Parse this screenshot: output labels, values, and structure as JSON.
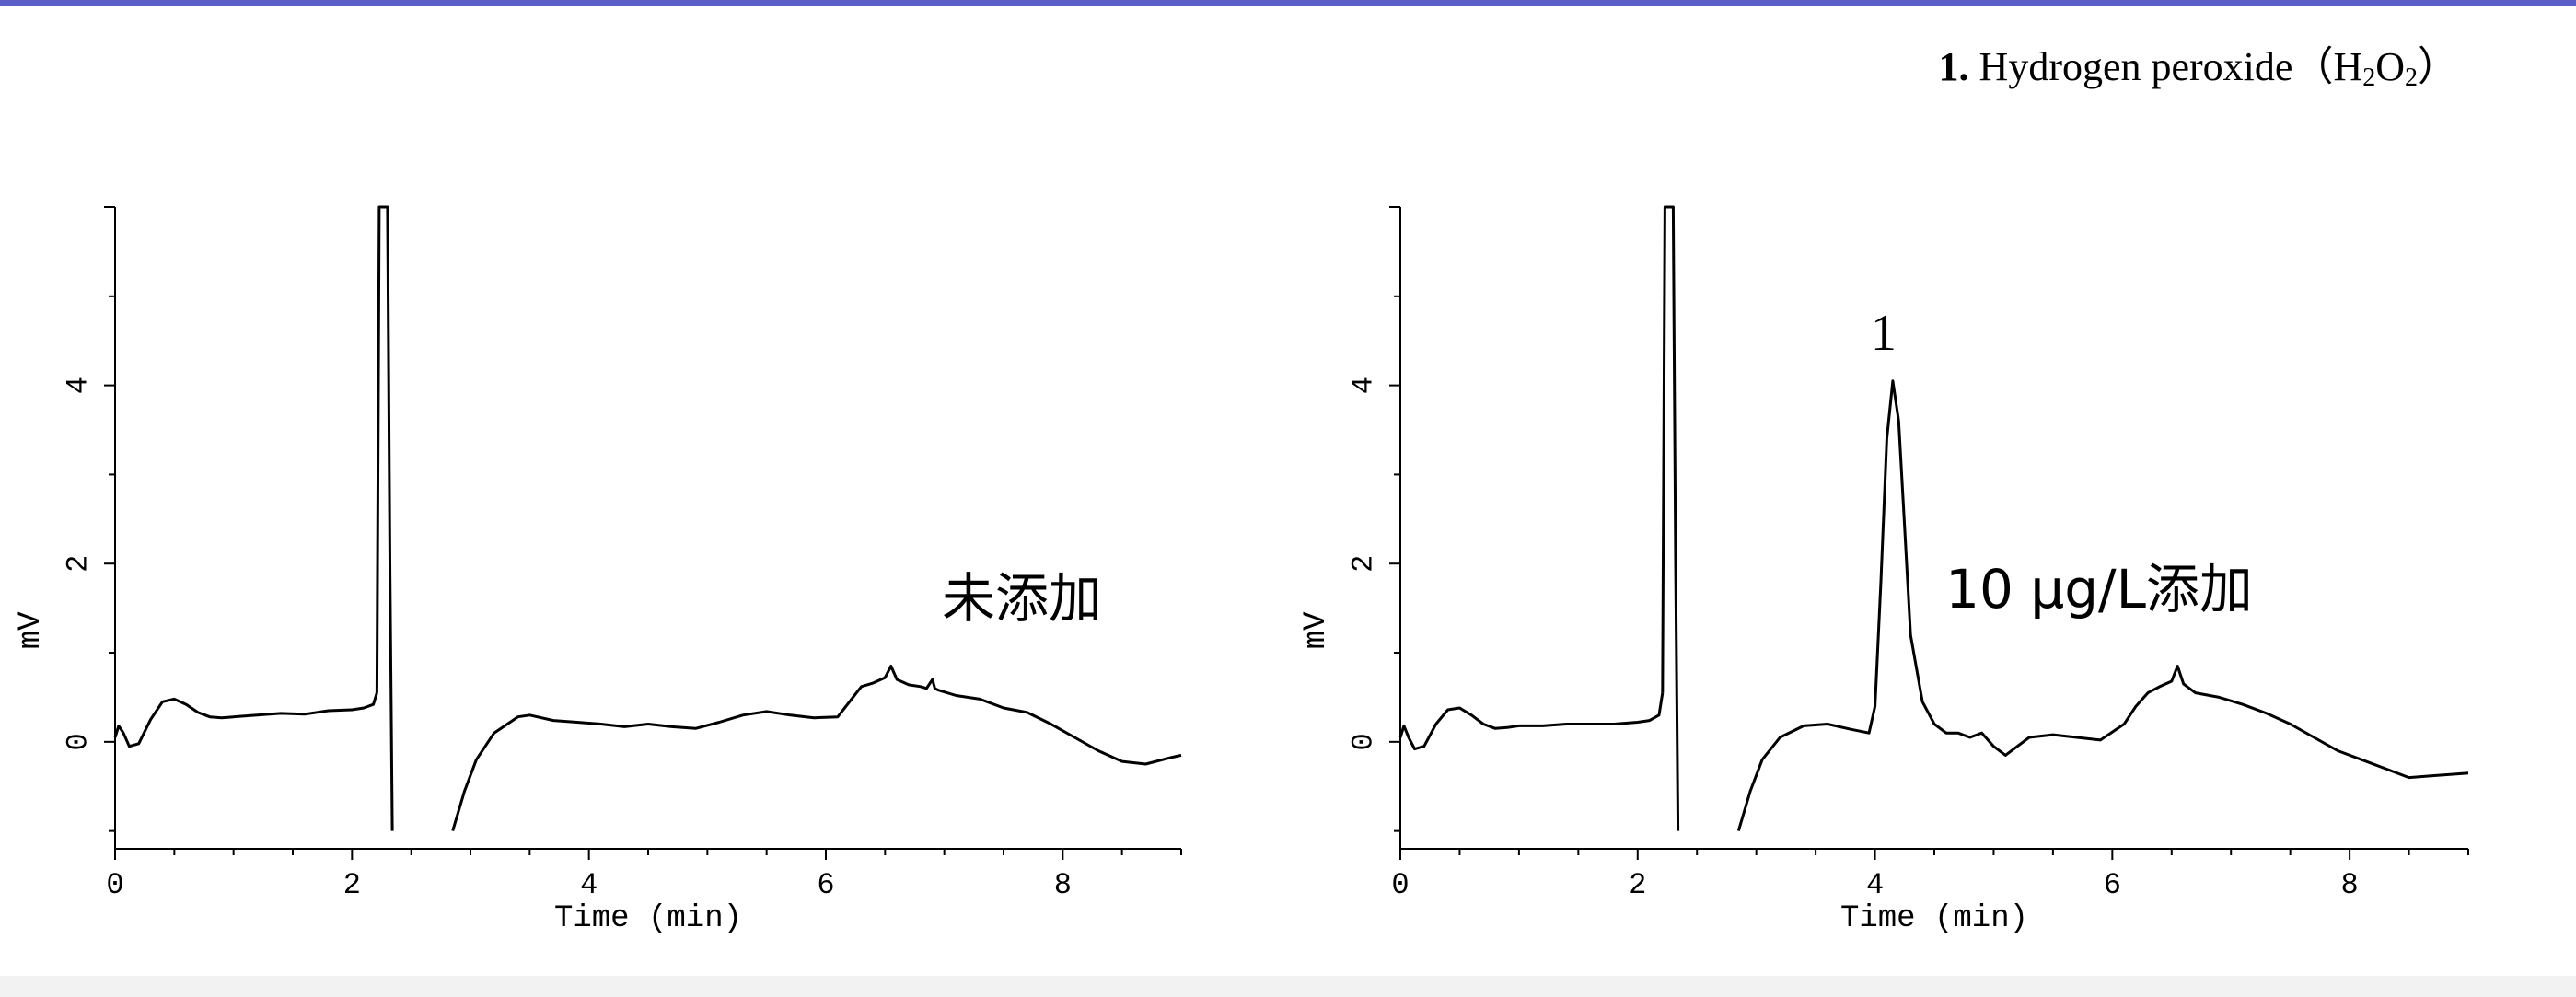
{
  "caption": {
    "number": "1.",
    "text_prefix": " Hydrogen peroxide（H",
    "sub1": "2",
    "text_mid": "O",
    "sub2": "2",
    "text_suffix": "）"
  },
  "chart_data": [
    {
      "type": "line",
      "xlabel": "Time (min)",
      "ylabel": "mV",
      "xlim": [
        0,
        9
      ],
      "ylim": [
        -1.2,
        6.0
      ],
      "xticks": [
        0,
        2,
        4,
        6,
        8
      ],
      "yticks": [
        0,
        2,
        4
      ],
      "annotation": "未添加",
      "peak_labels": [],
      "series": [
        {
          "x": [
            0,
            0.03,
            0.07,
            0.12,
            0.2,
            0.3,
            0.4,
            0.5,
            0.6,
            0.7,
            0.8,
            0.9,
            1.0,
            1.2,
            1.4,
            1.6,
            1.8,
            2.0,
            2.1,
            2.18,
            2.21
          ],
          "y": [
            0.05,
            0.18,
            0.1,
            -0.05,
            -0.02,
            0.25,
            0.45,
            0.48,
            0.42,
            0.33,
            0.28,
            0.27,
            0.28,
            0.3,
            0.32,
            0.31,
            0.35,
            0.36,
            0.38,
            0.42,
            0.55
          ]
        },
        {
          "x": [
            2.21,
            2.23,
            2.3,
            2.32,
            2.34
          ],
          "y": [
            0.55,
            6.0,
            6.0,
            2.0,
            -1.0
          ]
        },
        {
          "x": [
            2.85,
            2.95,
            3.05,
            3.2,
            3.4,
            3.5,
            3.7,
            3.9,
            4.1,
            4.3,
            4.5,
            4.7,
            4.9,
            5.1,
            5.3,
            5.5,
            5.7,
            5.9,
            6.1,
            6.2,
            6.3,
            6.4,
            6.5,
            6.55,
            6.6,
            6.7,
            6.8,
            6.85,
            6.9,
            6.92,
            6.95,
            7.1,
            7.3,
            7.5,
            7.7,
            7.9,
            8.1,
            8.3,
            8.5,
            8.7,
            8.9,
            9.0
          ],
          "y": [
            -1.0,
            -0.55,
            -0.2,
            0.1,
            0.28,
            0.3,
            0.24,
            0.22,
            0.2,
            0.17,
            0.2,
            0.17,
            0.15,
            0.22,
            0.3,
            0.34,
            0.3,
            0.27,
            0.28,
            0.45,
            0.62,
            0.66,
            0.72,
            0.85,
            0.7,
            0.64,
            0.62,
            0.6,
            0.7,
            0.6,
            0.58,
            0.52,
            0.48,
            0.38,
            0.33,
            0.2,
            0.05,
            -0.1,
            -0.22,
            -0.25,
            -0.18,
            -0.15
          ]
        }
      ]
    },
    {
      "type": "line",
      "xlabel": "Time (min)",
      "ylabel": "mV",
      "xlim": [
        0,
        9
      ],
      "ylim": [
        -1.2,
        6.0
      ],
      "xticks": [
        0,
        2,
        4,
        6,
        8
      ],
      "yticks": [
        0,
        2,
        4
      ],
      "annotation": "10 μg/L添加",
      "peak_labels": [
        {
          "text": "1",
          "x": 4.15,
          "y": 4.05
        }
      ],
      "series": [
        {
          "x": [
            0,
            0.03,
            0.07,
            0.12,
            0.2,
            0.3,
            0.4,
            0.5,
            0.6,
            0.7,
            0.8,
            0.9,
            1.0,
            1.2,
            1.4,
            1.6,
            1.8,
            2.0,
            2.1,
            2.18,
            2.21
          ],
          "y": [
            0.05,
            0.18,
            0.05,
            -0.08,
            -0.05,
            0.2,
            0.36,
            0.38,
            0.3,
            0.2,
            0.15,
            0.16,
            0.18,
            0.18,
            0.2,
            0.2,
            0.2,
            0.22,
            0.24,
            0.3,
            0.55
          ]
        },
        {
          "x": [
            2.21,
            2.23,
            2.3,
            2.32,
            2.34
          ],
          "y": [
            0.55,
            6.0,
            6.0,
            2.0,
            -1.0
          ]
        },
        {
          "x": [
            2.85,
            2.95,
            3.05,
            3.2,
            3.4,
            3.6,
            3.8,
            3.95,
            4.0,
            4.05,
            4.1,
            4.15,
            4.2,
            4.25,
            4.3,
            4.4,
            4.5,
            4.6,
            4.7,
            4.8,
            4.9,
            5.0,
            5.1,
            5.2,
            5.3,
            5.5,
            5.7,
            5.9,
            6.1,
            6.2,
            6.3,
            6.4,
            6.5,
            6.55,
            6.6,
            6.7,
            6.9,
            7.1,
            7.3,
            7.5,
            7.7,
            7.9,
            8.1,
            8.3,
            8.5,
            8.7,
            8.9,
            9.0
          ],
          "y": [
            -1.0,
            -0.55,
            -0.2,
            0.05,
            0.18,
            0.2,
            0.14,
            0.1,
            0.4,
            1.8,
            3.4,
            4.05,
            3.6,
            2.4,
            1.2,
            0.45,
            0.2,
            0.1,
            0.1,
            0.05,
            0.1,
            -0.05,
            -0.15,
            -0.05,
            0.05,
            0.08,
            0.05,
            0.02,
            0.2,
            0.4,
            0.55,
            0.62,
            0.68,
            0.85,
            0.65,
            0.55,
            0.5,
            0.42,
            0.32,
            0.2,
            0.05,
            -0.1,
            -0.2,
            -0.3,
            -0.4,
            -0.38,
            -0.36,
            -0.35
          ]
        }
      ]
    }
  ]
}
